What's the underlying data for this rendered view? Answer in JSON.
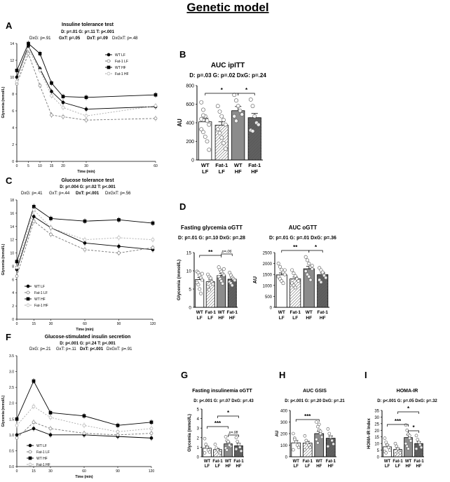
{
  "page_title": "Genetic model",
  "panels": {
    "A": {
      "letter": "A",
      "title": "Insuline tolerance test",
      "stats1": "D: p=.01    G: p=.11    T: p<.001",
      "stats2a": "DxG: p=.91",
      "stats2b": "GxT: p=.05",
      "stats2c": "DxT: p=.09",
      "stats2d": "DxGxT: p=.48"
    },
    "B": {
      "letter": "B",
      "title": "AUC ipITT",
      "stats": "D: p=.03   G: p=.02   DxG: p=.24",
      "sig": [
        "*",
        "*"
      ]
    },
    "C": {
      "letter": "C",
      "title": "Glucose tolerance test",
      "stats1": "D: p=.004    G: p=.02    T: p<.001",
      "stats2a": "DxG: p=.41",
      "stats2b": "GxT: p=.44",
      "stats2c": "DxT: p<.001",
      "stats2d": "DxGxT: p=.56"
    },
    "D1": {
      "letter": "D",
      "title": "Fasting glycemia oGTT",
      "stats": "D: p=.01   G: p=.10   DxG: p=.28",
      "sig": [
        "**",
        "p=.06"
      ]
    },
    "D2": {
      "title": "AUC oGTT",
      "stats": "D: p=.01   G: p=.01   DxG: p=.36",
      "sig": [
        "**",
        "*"
      ]
    },
    "F": {
      "letter": "F",
      "title": "Glucose-stimulated insulin secretion",
      "stats1": "D: p<.001    G: p=.24    T: p<.001",
      "stats2a": "DxG: p=.21",
      "stats2b": "GxT: p=.11",
      "stats2c": "DxT: p<.001",
      "stats2d": "DxGxT: p=.91"
    },
    "G": {
      "letter": "G",
      "title": "Fasting insulinemia oGTT",
      "stats": "D: p<.001   G: p=.07   DxG: p=.43",
      "sig": [
        "***",
        "*",
        "p=.08"
      ]
    },
    "H": {
      "letter": "H",
      "title": "AUC GSIS",
      "stats": "D: p<.001   G: p=.20   DxG: p=.21",
      "sig": [
        "***"
      ]
    },
    "I": {
      "letter": "I",
      "title": "HOMA-IR",
      "stats": "D: p<.001   G: p=.05   DxG: p=.32",
      "sig": [
        "***",
        "*",
        "*"
      ]
    }
  },
  "colors": {
    "dark": "#000000",
    "gray": "#777777",
    "light": "#aaaaaa",
    "bar_wt_hf": "#8c8c8c",
    "bar_fat_hf": "#606060"
  },
  "chart_data": [
    {
      "id": "A",
      "type": "line",
      "xlabel": "Time (min)",
      "ylabel": "Glycemia (mmol/L)",
      "xlim": [
        0,
        60
      ],
      "ylim": [
        0,
        14
      ],
      "x": [
        0,
        5,
        10,
        15,
        20,
        30,
        60
      ],
      "xticks": [
        0,
        5,
        10,
        15,
        20,
        30,
        60
      ],
      "yticks": [
        0,
        2,
        4,
        6,
        8,
        10,
        12,
        14
      ],
      "series": [
        {
          "name": "WT LF",
          "values": [
            10.0,
            13.7,
            11.0,
            8.3,
            7.0,
            6.2,
            6.5
          ]
        },
        {
          "name": "Fat-1 LF",
          "values": [
            9.2,
            12.8,
            9.0,
            5.5,
            5.3,
            4.9,
            5.1
          ]
        },
        {
          "name": "WT HF",
          "values": [
            10.8,
            14.0,
            12.8,
            9.3,
            7.7,
            7.6,
            7.9
          ]
        },
        {
          "name": "Fat-1 HF",
          "values": [
            9.5,
            13.3,
            10.8,
            7.8,
            6.4,
            5.4,
            6.6
          ]
        }
      ]
    },
    {
      "id": "B",
      "type": "bar",
      "ylabel": "AU",
      "ylim": [
        0,
        800
      ],
      "yticks": [
        0,
        200,
        400,
        600,
        800
      ],
      "categories": [
        "WT LF",
        "Fat-1 LF",
        "WT HF",
        "Fat-1 HF"
      ],
      "values": [
        410,
        375,
        530,
        455
      ],
      "errors": [
        40,
        35,
        45,
        45
      ],
      "points": [
        [
          620,
          540,
          470,
          420,
          380,
          330,
          300,
          250,
          200,
          110,
          440,
          480
        ],
        [
          580,
          520,
          470,
          430,
          380,
          330,
          290,
          240,
          180,
          120
        ],
        [
          700,
          640,
          580,
          530,
          490,
          470,
          420
        ],
        [
          650,
          580,
          470,
          400,
          380,
          320,
          310
        ]
      ]
    },
    {
      "id": "C",
      "type": "line",
      "xlabel": "Time (min)",
      "ylabel": "Glycemia (mmol/L)",
      "xlim": [
        0,
        120
      ],
      "ylim": [
        0,
        18
      ],
      "x": [
        0,
        15,
        30,
        60,
        90,
        120
      ],
      "xticks": [
        0,
        15,
        30,
        60,
        90,
        120
      ],
      "yticks": [
        0,
        2,
        4,
        6,
        8,
        10,
        12,
        14,
        16,
        18
      ],
      "series": [
        {
          "name": "WT LF",
          "values": [
            7.5,
            15.5,
            13.8,
            11.5,
            11.0,
            10.5
          ]
        },
        {
          "name": "Fat-1 LF",
          "values": [
            6.5,
            14.8,
            12.8,
            10.5,
            10.0,
            10.8
          ]
        },
        {
          "name": "WT HF",
          "values": [
            8.7,
            17.0,
            15.2,
            14.8,
            15.0,
            14.5
          ]
        },
        {
          "name": "Fat-1 HF",
          "values": [
            7.8,
            16.5,
            13.8,
            12.0,
            12.3,
            12.0
          ]
        }
      ]
    },
    {
      "id": "D1",
      "type": "bar",
      "ylabel": "Glycemia (mmol/L)",
      "ylim": [
        0,
        15
      ],
      "yticks": [
        0,
        5,
        10,
        15
      ],
      "categories": [
        "WT LF",
        "Fat-1 LF",
        "WT HF",
        "Fat-1 HF"
      ],
      "values": [
        7.6,
        7.0,
        8.7,
        7.7
      ],
      "errors": [
        0.6,
        0.5,
        0.6,
        0.4
      ],
      "points": [
        [
          9.8,
          9.5,
          8.8,
          8.1,
          7.5,
          6.8,
          6.2,
          5.0,
          3.8,
          9.2
        ],
        [
          9.0,
          8.4,
          7.7,
          7.0,
          6.4,
          5.6,
          4.8,
          8.0
        ],
        [
          11.0,
          10.3,
          9.8,
          9.2,
          8.8,
          8.4,
          7.8,
          7.2,
          6.5,
          10.5
        ],
        [
          9.5,
          8.8,
          8.2,
          7.8,
          7.4,
          7.0,
          6.6,
          6.0
        ]
      ]
    },
    {
      "id": "D2",
      "type": "bar",
      "ylabel": "AU",
      "ylim": [
        0,
        2500
      ],
      "yticks": [
        0,
        500,
        1000,
        1500,
        2000,
        2500
      ],
      "categories": [
        "WT LF",
        "Fat-1 LF",
        "WT HF",
        "Fat-1 HF"
      ],
      "values": [
        1480,
        1300,
        1760,
        1490
      ],
      "errors": [
        90,
        80,
        110,
        80
      ],
      "points": [
        [
          2000,
          1850,
          1720,
          1600,
          1500,
          1400,
          1300,
          1200,
          1100,
          1700
        ],
        [
          1700,
          1550,
          1430,
          1300,
          1200,
          1100,
          1000,
          900
        ],
        [
          2300,
          2150,
          2000,
          1850,
          1750,
          1650,
          1500,
          1400,
          1250,
          1900
        ],
        [
          1800,
          1700,
          1550,
          1450,
          1350,
          1250,
          1150,
          1600
        ]
      ]
    },
    {
      "id": "F",
      "type": "line",
      "xlabel": "Time (min)",
      "ylabel": "Glycemia (mmol/L)",
      "xlim": [
        0,
        120
      ],
      "ylim": [
        0,
        3.5
      ],
      "x": [
        0,
        15,
        30,
        60,
        90,
        120
      ],
      "xticks": [
        0,
        15,
        30,
        60,
        90,
        120
      ],
      "yticks": [
        0,
        0.5,
        1.0,
        1.5,
        2.0,
        2.5,
        3.0,
        3.5
      ],
      "series": [
        {
          "name": "WT LF",
          "values": [
            1.0,
            1.2,
            1.0,
            1.0,
            0.95,
            0.9
          ]
        },
        {
          "name": "Fat-1 LF",
          "values": [
            0.9,
            1.4,
            1.2,
            1.05,
            1.0,
            1.05
          ]
        },
        {
          "name": "WT HF",
          "values": [
            1.5,
            2.7,
            1.7,
            1.6,
            1.3,
            1.4
          ]
        },
        {
          "name": "Fat-1 HF",
          "values": [
            1.3,
            1.9,
            1.55,
            1.3,
            1.1,
            1.2
          ]
        }
      ]
    },
    {
      "id": "G",
      "type": "bar",
      "ylabel": "Glycemia (mmol/L)",
      "ylim": [
        0,
        5
      ],
      "yticks": [
        0,
        1,
        2,
        3,
        4,
        5
      ],
      "categories": [
        "WT LF",
        "Fat-1 LF",
        "WT HF",
        "Fat-1 HF"
      ],
      "values": [
        0.9,
        0.75,
        1.35,
        1.15
      ],
      "errors": [
        0.2,
        0.12,
        0.18,
        0.25
      ],
      "points": [
        [
          1.9,
          1.3,
          1.0,
          0.7,
          0.5,
          0.4
        ],
        [
          1.3,
          0.9,
          0.7,
          0.5,
          0.4
        ],
        [
          2.1,
          1.7,
          1.5,
          1.3,
          1.1,
          0.9,
          0.7,
          1.6,
          1.2
        ],
        [
          2.0,
          1.6,
          1.3,
          1.0,
          0.6,
          0.8
        ]
      ]
    },
    {
      "id": "H",
      "type": "bar",
      "ylabel": "AU",
      "ylim": [
        0,
        400
      ],
      "yticks": [
        0,
        100,
        200,
        300,
        400
      ],
      "categories": [
        "WT LF",
        "Fat-1 LF",
        "WT HF",
        "Fat-1 HF"
      ],
      "values": [
        120,
        118,
        200,
        160
      ],
      "errors": [
        20,
        15,
        20,
        20
      ],
      "points": [
        [
          200,
          160,
          130,
          100,
          80,
          60,
          150
        ],
        [
          180,
          140,
          120,
          100,
          80,
          60
        ],
        [
          300,
          260,
          230,
          200,
          170,
          150,
          120,
          280,
          220
        ],
        [
          240,
          200,
          170,
          140,
          110,
          90
        ]
      ]
    },
    {
      "id": "I",
      "type": "bar",
      "ylabel": "HOMA-IR Index",
      "ylim": [
        0,
        35
      ],
      "yticks": [
        0,
        5,
        10,
        15,
        20,
        25,
        30,
        35
      ],
      "categories": [
        "WT LF",
        "Fat-1 LF",
        "WT HF",
        "Fat-1 HF"
      ],
      "values": [
        7.5,
        5.5,
        14.5,
        10.0
      ],
      "errors": [
        1.5,
        1.0,
        2.0,
        1.5
      ],
      "points": [
        [
          14,
          11,
          9,
          7,
          5,
          4,
          3
        ],
        [
          10,
          8,
          6,
          4,
          3,
          2
        ],
        [
          24,
          20,
          17,
          14,
          12,
          10,
          8,
          6,
          16
        ],
        [
          16,
          13,
          11,
          9,
          7,
          6
        ]
      ]
    }
  ]
}
